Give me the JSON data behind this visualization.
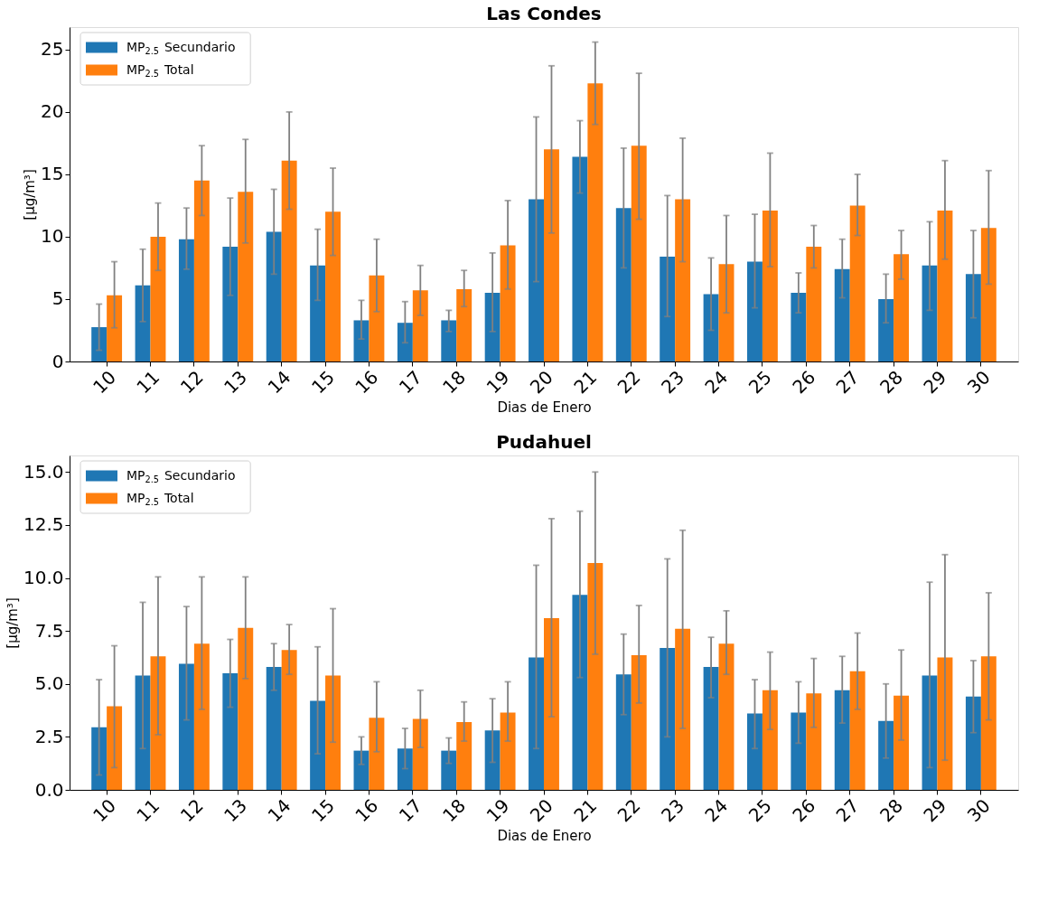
{
  "chart_data": [
    {
      "type": "bar",
      "title": "Las Condes",
      "xlabel": "Dias de Enero",
      "ylabel": "[μg/m³]",
      "legend": "top left",
      "grid": false,
      "categories": [
        "10",
        "11",
        "12",
        "13",
        "14",
        "15",
        "16",
        "17",
        "18",
        "19",
        "20",
        "21",
        "22",
        "23",
        "24",
        "25",
        "26",
        "27",
        "28",
        "29",
        "30"
      ],
      "ylim": [
        0,
        26.8
      ],
      "yticks": [
        0,
        5,
        10,
        15,
        20,
        25
      ],
      "series": [
        {
          "name": "MP$_{2.5}$ Secundario",
          "color": "#1f77b4",
          "values": [
            2.75,
            6.1,
            9.8,
            9.2,
            10.4,
            7.7,
            3.3,
            3.1,
            3.3,
            5.5,
            13.0,
            16.4,
            12.3,
            8.4,
            5.4,
            8.0,
            5.5,
            7.4,
            5.0,
            7.7,
            7.0
          ],
          "errors": [
            [
              0.9,
              4.6
            ],
            [
              3.2,
              9.0
            ],
            [
              7.4,
              12.3
            ],
            [
              5.3,
              13.1
            ],
            [
              7.0,
              13.8
            ],
            [
              4.9,
              10.6
            ],
            [
              1.8,
              4.9
            ],
            [
              1.5,
              4.8
            ],
            [
              2.4,
              4.1
            ],
            [
              2.4,
              8.7
            ],
            [
              6.4,
              19.6
            ],
            [
              13.5,
              19.3
            ],
            [
              7.5,
              17.1
            ],
            [
              3.6,
              13.3
            ],
            [
              2.5,
              8.3
            ],
            [
              4.3,
              11.8
            ],
            [
              3.9,
              7.1
            ],
            [
              5.1,
              9.8
            ],
            [
              3.1,
              7.0
            ],
            [
              4.1,
              11.2
            ],
            [
              3.5,
              10.5
            ]
          ]
        },
        {
          "name": "MP$_{2.5}$ Total",
          "color": "#ff7f0e",
          "values": [
            5.3,
            10.0,
            14.5,
            13.6,
            16.1,
            12.0,
            6.9,
            5.7,
            5.8,
            9.3,
            17.0,
            22.3,
            17.3,
            13.0,
            7.8,
            12.1,
            9.2,
            12.5,
            8.6,
            12.1,
            10.7
          ],
          "errors": [
            [
              2.7,
              8.0
            ],
            [
              7.3,
              12.7
            ],
            [
              11.7,
              17.3
            ],
            [
              9.5,
              17.8
            ],
            [
              12.2,
              20.0
            ],
            [
              8.5,
              15.5
            ],
            [
              4.0,
              9.8
            ],
            [
              3.7,
              7.7
            ],
            [
              4.4,
              7.3
            ],
            [
              5.8,
              12.9
            ],
            [
              10.3,
              23.7
            ],
            [
              19.0,
              25.6
            ],
            [
              11.4,
              23.1
            ],
            [
              8.0,
              17.9
            ],
            [
              3.9,
              11.7
            ],
            [
              7.6,
              16.7
            ],
            [
              7.5,
              10.9
            ],
            [
              10.1,
              15.0
            ],
            [
              6.6,
              10.5
            ],
            [
              8.2,
              16.1
            ],
            [
              6.2,
              15.3
            ]
          ]
        }
      ]
    },
    {
      "type": "bar",
      "title": "Pudahuel",
      "xlabel": "Dias de Enero",
      "ylabel": "[μg/m³]",
      "legend": "top left",
      "grid": false,
      "categories": [
        "10",
        "11",
        "12",
        "13",
        "14",
        "15",
        "16",
        "17",
        "18",
        "19",
        "20",
        "21",
        "22",
        "23",
        "24",
        "25",
        "26",
        "27",
        "28",
        "29",
        "30"
      ],
      "ylim": [
        0,
        15.78
      ],
      "yticks": [
        {
          "value": 0,
          "label": "0.0"
        },
        2.5,
        {
          "value": 5,
          "label": "5.0"
        },
        7.5,
        {
          "value": 10,
          "label": "10.0"
        },
        12.5,
        {
          "value": 15,
          "label": "15.0"
        }
      ],
      "series": [
        {
          "name": "MP$_{2.5}$ Secundario",
          "color": "#1f77b4",
          "values": [
            2.95,
            5.4,
            5.95,
            5.5,
            5.8,
            4.2,
            1.85,
            1.95,
            1.85,
            2.8,
            6.25,
            9.2,
            5.45,
            6.7,
            5.8,
            3.6,
            3.65,
            4.7,
            3.25,
            5.4,
            4.4
          ],
          "errors": [
            [
              0.7,
              5.2
            ],
            [
              1.95,
              8.85
            ],
            [
              3.3,
              8.65
            ],
            [
              3.9,
              7.1
            ],
            [
              4.7,
              6.9
            ],
            [
              1.7,
              6.75
            ],
            [
              1.2,
              2.5
            ],
            [
              1.0,
              2.9
            ],
            [
              1.25,
              2.45
            ],
            [
              1.3,
              4.3
            ],
            [
              1.95,
              10.6
            ],
            [
              5.3,
              13.15
            ],
            [
              3.55,
              7.35
            ],
            [
              2.5,
              10.9
            ],
            [
              4.35,
              7.2
            ],
            [
              1.95,
              5.2
            ],
            [
              2.2,
              5.1
            ],
            [
              3.15,
              6.3
            ],
            [
              1.5,
              5.0
            ],
            [
              1.05,
              9.8
            ],
            [
              2.7,
              6.1
            ]
          ]
        },
        {
          "name": "MP$_{2.5}$ Total",
          "color": "#ff7f0e",
          "values": [
            3.95,
            6.3,
            6.9,
            7.65,
            6.6,
            5.4,
            3.4,
            3.35,
            3.2,
            3.65,
            8.1,
            10.7,
            6.35,
            7.6,
            6.9,
            4.7,
            4.55,
            5.6,
            4.45,
            6.25,
            6.3
          ],
          "errors": [
            [
              1.05,
              6.8
            ],
            [
              2.6,
              10.05
            ],
            [
              3.8,
              10.05
            ],
            [
              5.25,
              10.05
            ],
            [
              5.45,
              7.8
            ],
            [
              2.25,
              8.55
            ],
            [
              1.8,
              5.1
            ],
            [
              2.0,
              4.7
            ],
            [
              2.3,
              4.15
            ],
            [
              2.3,
              5.1
            ],
            [
              3.45,
              12.8
            ],
            [
              6.4,
              15.0
            ],
            [
              4.1,
              8.7
            ],
            [
              2.9,
              12.25
            ],
            [
              5.45,
              8.45
            ],
            [
              2.85,
              6.5
            ],
            [
              2.95,
              6.2
            ],
            [
              3.8,
              7.4
            ],
            [
              2.35,
              6.6
            ],
            [
              1.4,
              11.1
            ],
            [
              3.3,
              9.3
            ]
          ]
        }
      ]
    }
  ]
}
